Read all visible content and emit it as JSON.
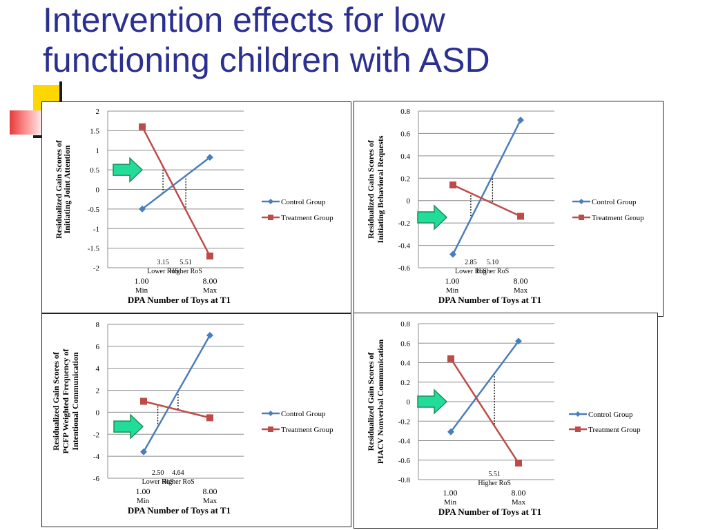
{
  "slide": {
    "title_line1": "Intervention effects for low",
    "title_line2": "functioning children with ASD"
  },
  "colors": {
    "control": "#4a7ebb",
    "treatment": "#be4b48",
    "title": "#2b2f8f",
    "arrow": "#22dd99"
  },
  "legend": {
    "control": "Control Group",
    "treatment": "Treatment Group"
  },
  "chart_data": [
    {
      "type": "line",
      "ylabel": [
        "Residualized Gain Scores of",
        "Initiating Joint Attention"
      ],
      "xlabel": "DPA Number of Toys at T1",
      "x_ticks": [
        {
          "value": "1.00",
          "sub": "Min"
        },
        {
          "value": "8.00",
          "sub": "Max"
        }
      ],
      "ylim": [
        -2,
        2
      ],
      "y_ticks": [
        "2",
        "1.5",
        "1",
        "0.5",
        "0",
        "-0.5",
        "-1",
        "-1.5",
        "-2"
      ],
      "y_tick_values": [
        2,
        1.5,
        1,
        0.5,
        0,
        -0.5,
        -1,
        -1.5,
        -2
      ],
      "series": [
        {
          "name": "Control Group",
          "values": [
            -0.5,
            0.82
          ]
        },
        {
          "name": "Treatment Group",
          "values": [
            1.6,
            -1.7
          ]
        }
      ],
      "ros": [
        {
          "x": 3.15,
          "label": "3.15",
          "name": "Lower RoS"
        },
        {
          "x": 5.51,
          "label": "5.51",
          "name": "Higher RoS"
        }
      ],
      "legend_position": "right",
      "arrow_y": 0.5
    },
    {
      "type": "line",
      "ylabel": [
        "Residualized Gain Scores of",
        "Initiating Behavioral Requests"
      ],
      "xlabel": "DPA Number of Toys at T1",
      "x_ticks": [
        {
          "value": "1.00",
          "sub": "Min"
        },
        {
          "value": "8.00",
          "sub": "Max"
        }
      ],
      "ylim": [
        -0.6,
        0.8
      ],
      "y_ticks": [
        "0.8",
        "0.6",
        "0.4",
        "0.2",
        "0",
        "-0.2",
        "-0.4",
        "-0.6"
      ],
      "y_tick_values": [
        0.8,
        0.6,
        0.4,
        0.2,
        0,
        -0.2,
        -0.4,
        -0.6
      ],
      "series": [
        {
          "name": "Control Group",
          "values": [
            -0.48,
            0.72
          ]
        },
        {
          "name": "Treatment Group",
          "values": [
            0.14,
            -0.14
          ]
        }
      ],
      "ros": [
        {
          "x": 2.85,
          "label": "2.85",
          "name": "Lower RoS"
        },
        {
          "x": 5.1,
          "label": "5.10",
          "name": "Higher RoS"
        }
      ],
      "legend_position": "right",
      "arrow_y": -0.15
    },
    {
      "type": "line",
      "ylabel": [
        "Residualized Gain Scores of",
        "PCFP Weighted Frequency of",
        "Intentional Communication"
      ],
      "xlabel": "DPA Number of Toys at T1",
      "x_ticks": [
        {
          "value": "1.00",
          "sub": "Min"
        },
        {
          "value": "8.00",
          "sub": "Max"
        }
      ],
      "ylim": [
        -6,
        8
      ],
      "y_ticks": [
        "8",
        "6",
        "4",
        "2",
        "0",
        "-2",
        "-4",
        "-6"
      ],
      "y_tick_values": [
        8,
        6,
        4,
        2,
        0,
        -2,
        -4,
        -6
      ],
      "series": [
        {
          "name": "Control Group",
          "values": [
            -3.6,
            7.0
          ]
        },
        {
          "name": "Treatment Group",
          "values": [
            1.0,
            -0.5
          ]
        }
      ],
      "ros": [
        {
          "x": 2.5,
          "label": "2.50",
          "name": "Lower RoS"
        },
        {
          "x": 4.64,
          "label": "4.64",
          "name": "Higher RoS"
        }
      ],
      "legend_position": "right",
      "arrow_y": -1.3
    },
    {
      "type": "line",
      "ylabel": [
        "Residualized Gain Scores of",
        "PIACV Nonverbal Communication"
      ],
      "xlabel": "DPA Number of Toys at T1",
      "x_ticks": [
        {
          "value": "1.00",
          "sub": "Min"
        },
        {
          "value": "8.00",
          "sub": "Max"
        }
      ],
      "ylim": [
        -0.8,
        0.8
      ],
      "y_ticks": [
        "0.8",
        "0.6",
        "0.4",
        "0.2",
        "0",
        "-0.2",
        "-0.4",
        "-0.6",
        "-0.8"
      ],
      "y_tick_values": [
        0.8,
        0.6,
        0.4,
        0.2,
        0,
        -0.2,
        -0.4,
        -0.6,
        -0.8
      ],
      "series": [
        {
          "name": "Control Group",
          "values": [
            -0.31,
            0.62
          ]
        },
        {
          "name": "Treatment Group",
          "values": [
            0.44,
            -0.63
          ]
        }
      ],
      "ros": [
        {
          "x": 5.51,
          "label": "5.51",
          "name": "Higher RoS"
        }
      ],
      "legend_position": "right",
      "arrow_y": 0.0
    }
  ]
}
